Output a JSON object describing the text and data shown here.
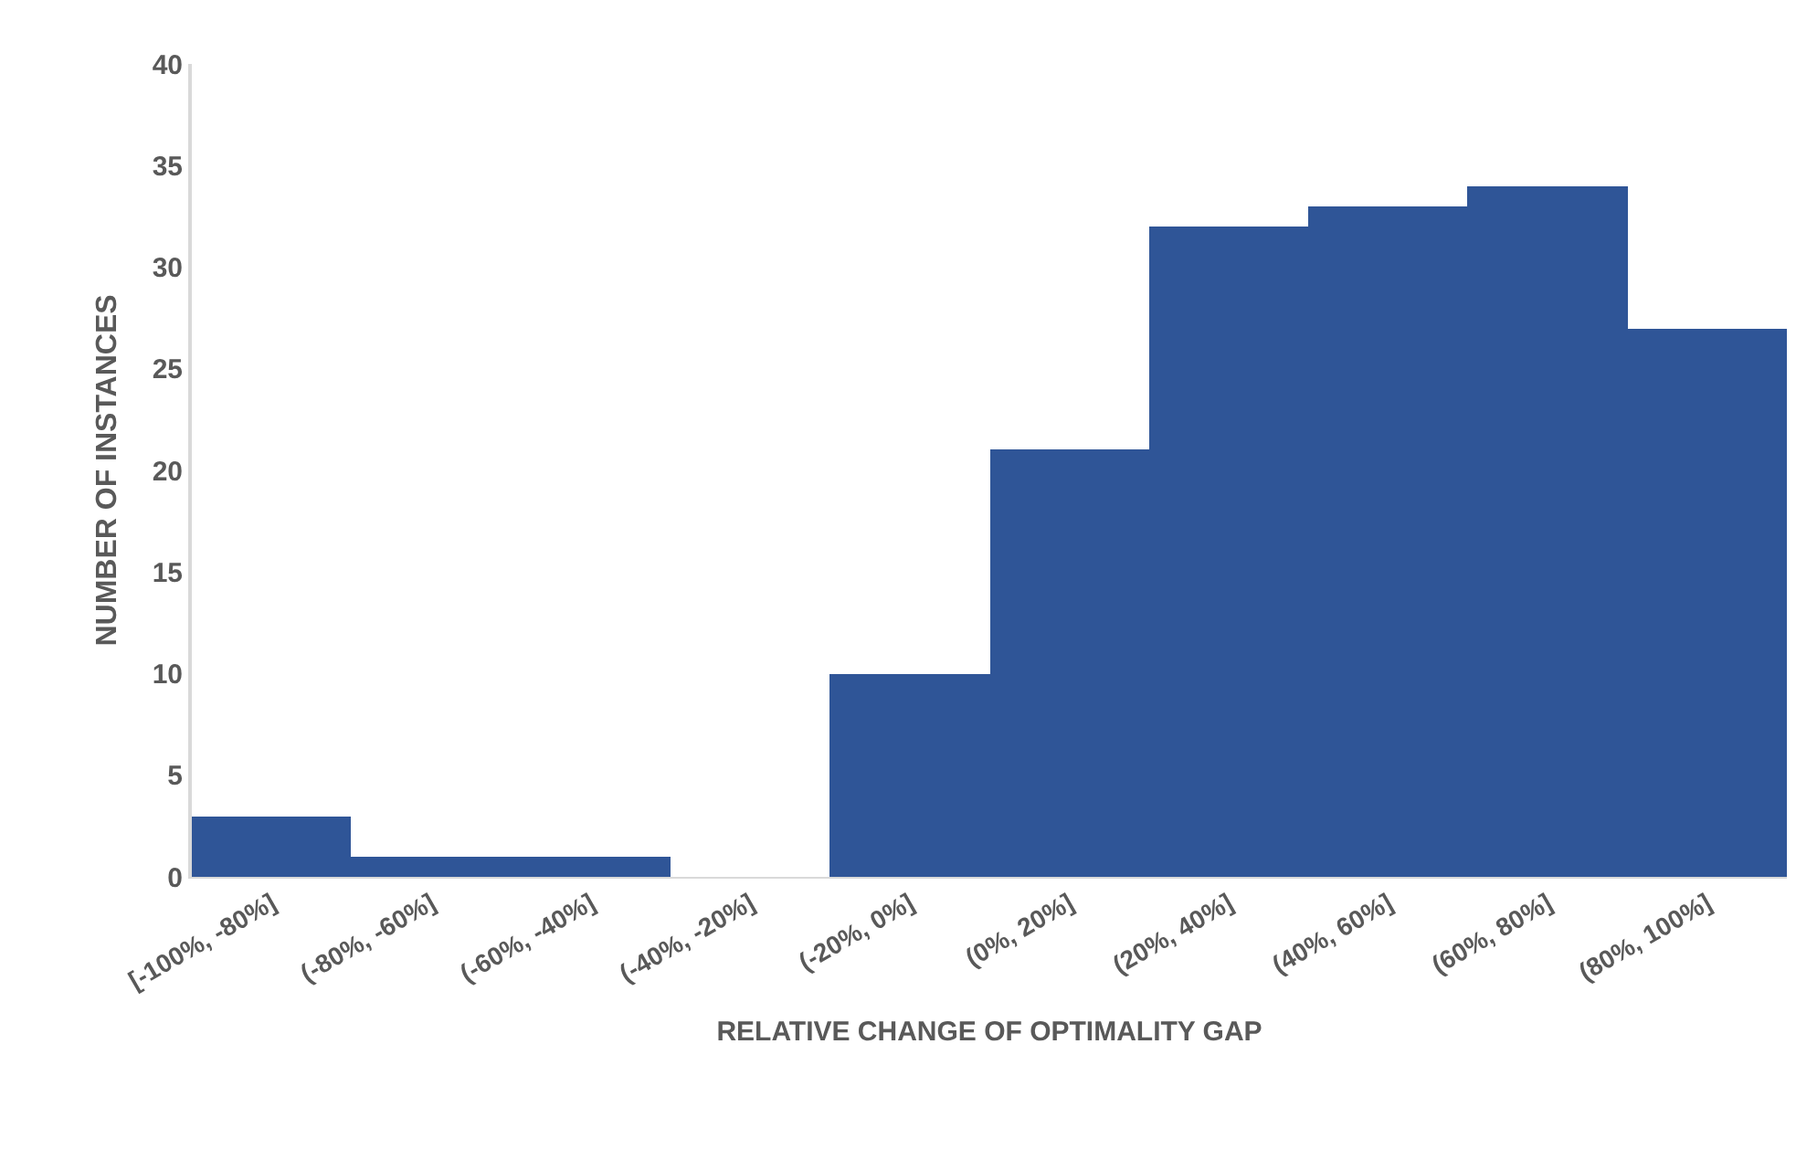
{
  "chart_data": {
    "type": "bar",
    "xlabel": "RELATIVE CHANGE OF OPTIMALITY GAP",
    "ylabel": "NUMBER OF INSTANCES",
    "categories": [
      "[-100%, -80%]",
      "(-80%, -60%]",
      "(-60%, -40%]",
      "(-40%, -20%]",
      "(-20%, 0%]",
      "(0%, 20%]",
      "(20%, 40%]",
      "(40%, 60%]",
      "(60%, 80%]",
      "(80%, 100%]"
    ],
    "values": [
      3,
      1,
      1,
      0,
      10,
      21,
      32,
      33,
      34,
      27
    ],
    "color": "#2f5597",
    "ylim": [
      0,
      40
    ],
    "yticks": [
      0,
      5,
      10,
      15,
      20,
      25,
      30,
      35,
      40
    ],
    "grid": false
  }
}
